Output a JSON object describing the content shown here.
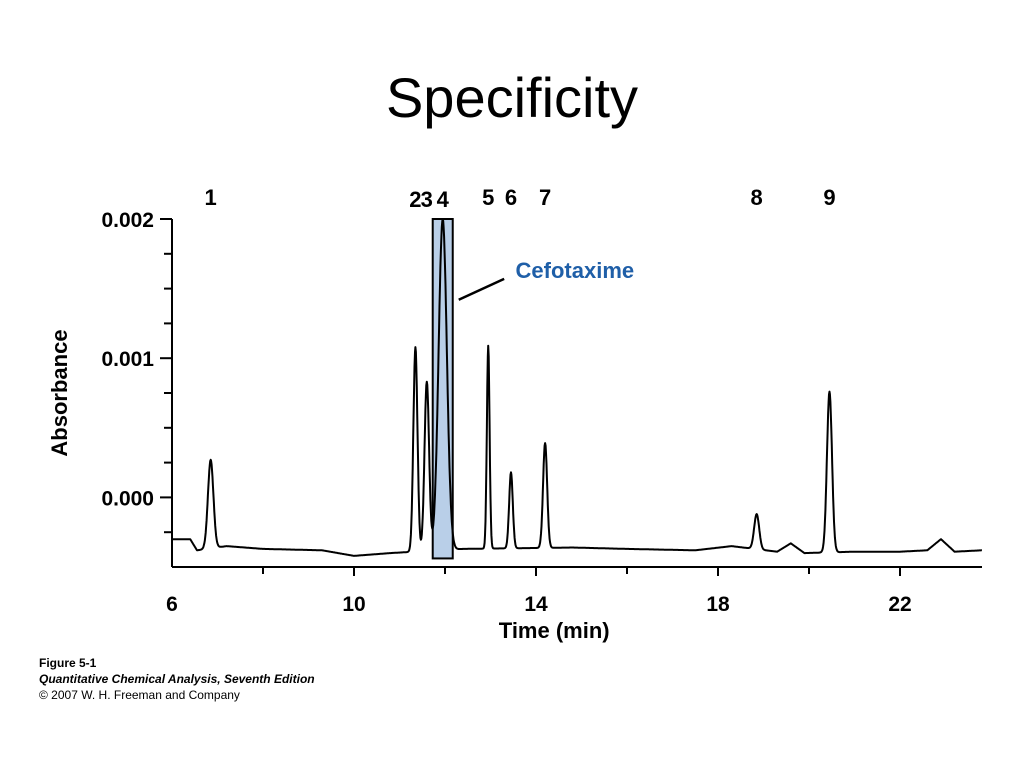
{
  "slide": {
    "title": "Specificity"
  },
  "caption": {
    "figure": "Figure 5-1",
    "book": "Quantitative Chemical Analysis, Seventh Edition",
    "copyright": "© 2007 W. H. Freeman and Company"
  },
  "colors": {
    "trace": "#000000",
    "highlight_fill": "#b9cfe8",
    "annotation": "#1f5fa8"
  },
  "chart_data": {
    "type": "line",
    "title": "",
    "xlabel": "Time (min)",
    "ylabel": "Absorbance",
    "xlim": [
      6,
      23.8
    ],
    "ylim": [
      -0.0005,
      0.002
    ],
    "xticks": [
      6,
      10,
      14,
      18,
      22
    ],
    "xtick_labels": [
      "6",
      "10",
      "14",
      "18",
      "22"
    ],
    "yticks": [
      0.0,
      0.001,
      0.002
    ],
    "ytick_labels": [
      "0.000",
      "0.001",
      "0.002"
    ],
    "grid": false,
    "legend": "none",
    "annotation": {
      "text": "Cefotaxime",
      "peak": "4"
    },
    "peaks": [
      {
        "label": "1",
        "time": 6.85,
        "absorbance": 0.00027
      },
      {
        "label": "2",
        "time": 11.35,
        "absorbance": 0.00108
      },
      {
        "label": "3",
        "time": 11.6,
        "absorbance": 0.00083
      },
      {
        "label": "4",
        "time": 11.95,
        "absorbance": 0.002
      },
      {
        "label": "5",
        "time": 12.95,
        "absorbance": 0.00109
      },
      {
        "label": "6",
        "time": 13.45,
        "absorbance": 0.00018
      },
      {
        "label": "7",
        "time": 14.2,
        "absorbance": 0.00039
      },
      {
        "label": "8",
        "time": 18.85,
        "absorbance": -0.00012
      },
      {
        "label": "9",
        "time": 20.45,
        "absorbance": 0.00076
      }
    ],
    "baseline": [
      {
        "x": 6.0,
        "y": -0.0003
      },
      {
        "x": 6.4,
        "y": -0.0003
      },
      {
        "x": 6.55,
        "y": -0.00038
      },
      {
        "x": 7.2,
        "y": -0.00035
      },
      {
        "x": 8.0,
        "y": -0.00037
      },
      {
        "x": 9.3,
        "y": -0.00038
      },
      {
        "x": 10.0,
        "y": -0.00042
      },
      {
        "x": 10.8,
        "y": -0.0004
      },
      {
        "x": 12.4,
        "y": -0.00037
      },
      {
        "x": 14.8,
        "y": -0.00036
      },
      {
        "x": 16.0,
        "y": -0.00037
      },
      {
        "x": 17.5,
        "y": -0.00038
      },
      {
        "x": 18.3,
        "y": -0.00035
      },
      {
        "x": 19.3,
        "y": -0.00039
      },
      {
        "x": 19.6,
        "y": -0.00033
      },
      {
        "x": 19.9,
        "y": -0.0004
      },
      {
        "x": 21.0,
        "y": -0.00039
      },
      {
        "x": 22.0,
        "y": -0.00039
      },
      {
        "x": 22.6,
        "y": -0.00038
      },
      {
        "x": 22.9,
        "y": -0.0003
      },
      {
        "x": 23.2,
        "y": -0.00039
      },
      {
        "x": 23.8,
        "y": -0.00038
      }
    ]
  }
}
